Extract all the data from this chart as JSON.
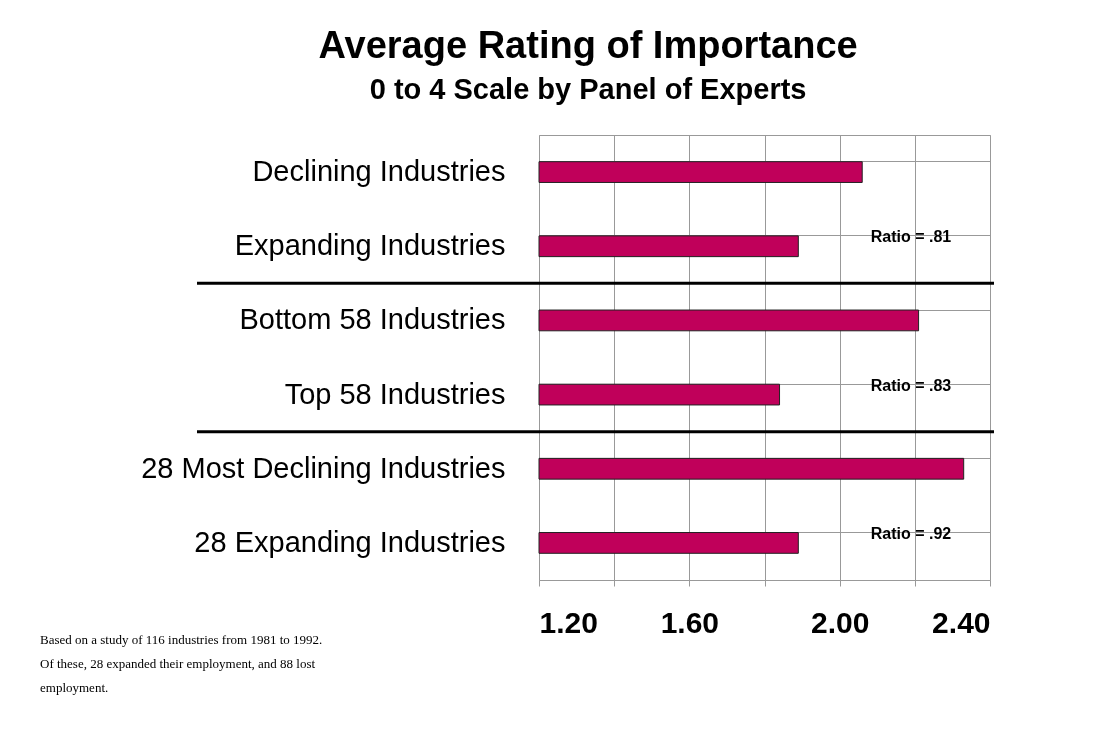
{
  "chart_data": {
    "type": "bar",
    "orientation": "horizontal",
    "title": "Average Rating of Importance",
    "subtitle": "0 to 4 Scale by Panel of Experts",
    "categories": [
      "Declining Industries",
      "Expanding Industries",
      "Bottom 58 Industries",
      "Top 58 Industries",
      "28 Most Declining Industries",
      "28 Expanding Industries"
    ],
    "values": [
      2.06,
      1.89,
      2.21,
      1.84,
      2.33,
      1.89
    ],
    "color": "#c0005a",
    "xlim": [
      1.2,
      2.4
    ],
    "xticks": [
      {
        "value": 1.2,
        "label": "1.20"
      },
      {
        "value": 1.4,
        "label": null
      },
      {
        "value": 1.6,
        "label": "1.60"
      },
      {
        "value": 1.8,
        "label": null
      },
      {
        "value": 2.0,
        "label": "2.00"
      },
      {
        "value": 2.2,
        "label": null
      },
      {
        "value": 2.4,
        "label": "2.40"
      }
    ],
    "grid": true,
    "annotations": [
      "Ratio = .81",
      "Ratio = .83",
      "Ratio = .92",
      "Based on a study of 116 industries from 1981 to 1992. Of these, 28 expanded their employment, and 88 lost employment."
    ]
  }
}
